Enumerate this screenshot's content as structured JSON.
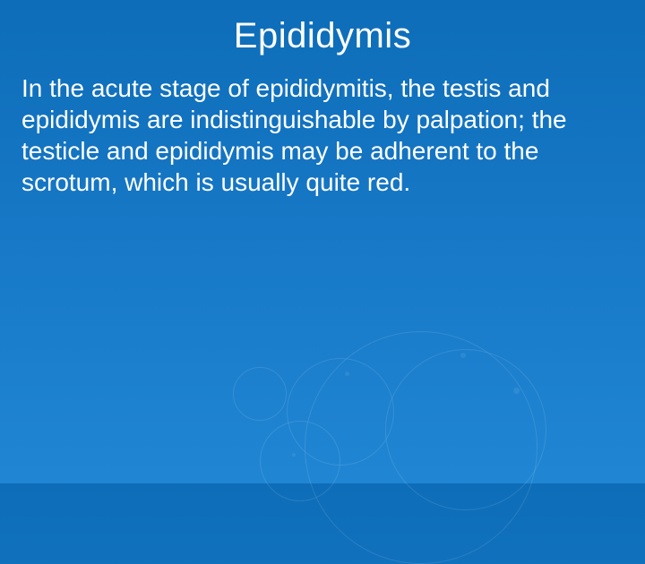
{
  "slide": {
    "title": "Epididymis",
    "body": "In the acute stage of epididymitis, the testis and epididymis are indistinguishable by palpation; the testicle and epididymis may be adherent to the scrotum, which is usually quite red.",
    "title_color": "#ffffff",
    "body_color": "#ffffff",
    "title_fontsize": 40,
    "body_fontsize": 28,
    "background_gradient_top": "#0d6db8",
    "background_gradient_bottom": "#2086d4",
    "decoration_opacity": 0.22
  }
}
